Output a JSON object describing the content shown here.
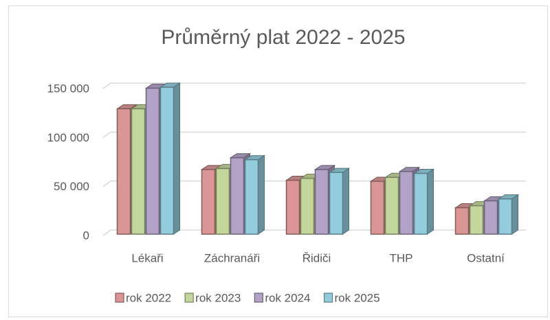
{
  "chart_data": {
    "type": "bar3d",
    "title": "Průměrný plat 2022 - 2025",
    "categories": [
      "Lékaři",
      "Záchranáři",
      "Řidiči",
      "THP",
      "Ostatní"
    ],
    "series": [
      {
        "name": "rok 2022",
        "color": "#d99694",
        "values": [
          128000,
          66000,
          55000,
          54000,
          27000
        ]
      },
      {
        "name": "rok 2023",
        "color": "#c3d69b",
        "values": [
          128000,
          67000,
          57000,
          58000,
          29000
        ]
      },
      {
        "name": "rok 2024",
        "color": "#b3a2c7",
        "values": [
          149000,
          78000,
          66000,
          64000,
          34000
        ]
      },
      {
        "name": "rok 2025",
        "color": "#93cddd",
        "values": [
          150000,
          76000,
          63000,
          62000,
          36000
        ]
      }
    ],
    "ylim": [
      0,
      150000
    ],
    "yticks": [
      0,
      {
        "value": 50000,
        "label": "50 000"
      },
      {
        "value": 100000,
        "label": "100 000"
      },
      {
        "value": 150000,
        "label": "150 000"
      }
    ],
    "grid": true,
    "legend": "bottom"
  }
}
